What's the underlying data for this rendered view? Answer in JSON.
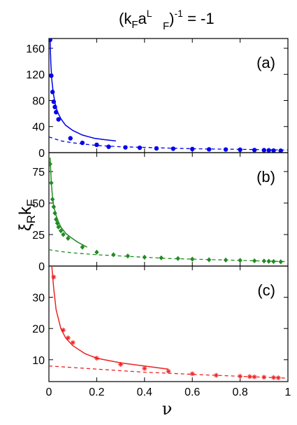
{
  "title": {
    "open": "(k",
    "sub1": "F",
    "mid": "a",
    "sup2": "L",
    "sub2": "F",
    "close": ")",
    "sup3": "-1",
    "rest": " = -1"
  },
  "ylabel": {
    "xi": "ξ",
    "sub1": "R",
    "k": "k",
    "sub2": "F"
  },
  "xlabel": "ν",
  "colors": {
    "a": "#0000ee",
    "b": "#228b22",
    "c": "#ee2222",
    "axis": "#000000"
  },
  "chart_data": [
    {
      "type": "line",
      "label": "(a)",
      "xlim": [
        0,
        1
      ],
      "ylim": [
        0,
        175
      ],
      "yticks": [
        "0",
        "40",
        "80",
        "120",
        "160"
      ],
      "ytick_values": [
        0,
        40,
        80,
        120,
        160
      ],
      "xticks": [],
      "marker": "circle",
      "points": {
        "x": [
          0.005,
          0.01,
          0.015,
          0.02,
          0.025,
          0.03,
          0.04,
          0.09,
          0.14,
          0.2,
          0.25,
          0.32,
          0.38,
          0.45,
          0.52,
          0.6,
          0.67,
          0.74,
          0.8,
          0.86,
          0.9,
          0.92,
          0.94,
          0.97
        ],
        "y": [
          173,
          118,
          93,
          78,
          70,
          62,
          51,
          22,
          15,
          12,
          9,
          8,
          7.5,
          6.5,
          6,
          5.5,
          5,
          4.8,
          4.5,
          4,
          3.8,
          3.5,
          3.2,
          3
        ]
      },
      "solid_curve": {
        "x": [
          0.005,
          0.008,
          0.012,
          0.018,
          0.025,
          0.035,
          0.05,
          0.07,
          0.1,
          0.14,
          0.19,
          0.23,
          0.28
        ],
        "y": [
          172,
          138,
          112,
          92,
          77,
          63,
          52,
          42,
          34,
          27,
          22,
          20,
          18
        ]
      },
      "dashed_curve": {
        "x": [
          0,
          0.05,
          0.1,
          0.15,
          0.2,
          0.3,
          0.4,
          0.5,
          0.6,
          0.7,
          0.8,
          0.9,
          1.0
        ],
        "y": [
          24,
          18,
          15,
          13,
          11,
          9,
          8,
          7,
          6,
          5.5,
          5,
          4.5,
          4
        ]
      }
    },
    {
      "type": "line",
      "label": "(b)",
      "xlim": [
        0,
        1
      ],
      "ylim": [
        0,
        90
      ],
      "yticks": [
        "0",
        "25",
        "50",
        "75"
      ],
      "ytick_values": [
        0,
        25,
        50,
        75
      ],
      "xticks": [],
      "marker": "diamond",
      "points": {
        "x": [
          0.005,
          0.01,
          0.015,
          0.02,
          0.025,
          0.03,
          0.035,
          0.04,
          0.05,
          0.06,
          0.08,
          0.14,
          0.2,
          0.27,
          0.33,
          0.4,
          0.47,
          0.54,
          0.6,
          0.67,
          0.74,
          0.8,
          0.86,
          0.9,
          0.92,
          0.94,
          0.97
        ],
        "y": [
          81,
          66,
          53,
          47,
          42,
          37,
          34,
          31,
          28,
          25,
          22,
          15,
          11,
          9,
          8,
          7,
          6.5,
          6,
          5.5,
          5,
          4.8,
          4.5,
          4.2,
          4,
          3.8,
          3.6,
          3.4
        ]
      },
      "solid_curve": {
        "x": [
          0.005,
          0.01,
          0.015,
          0.02,
          0.03,
          0.04,
          0.05,
          0.07,
          0.09,
          0.12,
          0.16
        ],
        "y": [
          86,
          66,
          55,
          48,
          40,
          35,
          31,
          26,
          23,
          19,
          15
        ]
      },
      "dashed_curve": {
        "x": [
          0,
          0.05,
          0.1,
          0.2,
          0.3,
          0.4,
          0.5,
          0.6,
          0.7,
          0.8,
          0.9,
          1.0
        ],
        "y": [
          13,
          11.5,
          10.5,
          9,
          8,
          7,
          6,
          5.5,
          5,
          4.5,
          4,
          3.5
        ]
      }
    },
    {
      "type": "line",
      "label": "(c)",
      "xlim": [
        0,
        1
      ],
      "ylim": [
        3,
        40
      ],
      "yticks": [
        "10",
        "20",
        "30"
      ],
      "ytick_values": [
        10,
        20,
        30
      ],
      "xticks": [
        "0",
        "0.2",
        "0.4",
        "0.6",
        "0.8",
        "1"
      ],
      "xtick_values": [
        0,
        0.2,
        0.4,
        0.6,
        0.8,
        1
      ],
      "marker": "asterisk",
      "points": {
        "x": [
          0.02,
          0.06,
          0.08,
          0.1,
          0.2,
          0.3,
          0.4,
          0.5,
          0.6,
          0.7,
          0.8,
          0.84,
          0.86,
          0.9,
          0.94,
          0.96
        ],
        "y": [
          36.5,
          19.5,
          17,
          15.5,
          10.5,
          8.5,
          7.2,
          6.3,
          5.5,
          5,
          4.7,
          4.6,
          4.5,
          4.4,
          4.3,
          4.2
        ]
      },
      "solid_curve": {
        "x": [
          0.012,
          0.02,
          0.03,
          0.05,
          0.07,
          0.1,
          0.15,
          0.2,
          0.3,
          0.4,
          0.5
        ],
        "y": [
          40,
          33,
          26,
          20,
          17,
          14.5,
          12,
          10.5,
          9,
          8,
          7
        ]
      },
      "dashed_curve": {
        "x": [
          0,
          0.1,
          0.2,
          0.3,
          0.4,
          0.5,
          0.6,
          0.7,
          0.8,
          0.9,
          1.0
        ],
        "y": [
          8,
          7.5,
          7,
          6.5,
          6,
          5.7,
          5.3,
          5,
          4.7,
          4.4,
          4.1
        ]
      }
    }
  ]
}
